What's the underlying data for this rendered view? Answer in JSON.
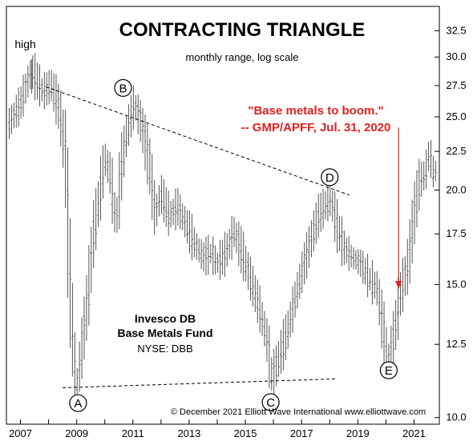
{
  "chart_data": {
    "type": "range-bar",
    "title": "CONTRACTING TRIANGLE",
    "subtitle": "monthly range, log scale",
    "y_scale": "log",
    "ylim": [
      9.8,
      35
    ],
    "xlim": [
      2006.5,
      2021.9
    ],
    "y_ticks": [
      {
        "value": 10.0,
        "label": "10.0"
      },
      {
        "value": 12.5,
        "label": "12.5"
      },
      {
        "value": 15.0,
        "label": "15.0"
      },
      {
        "value": 17.5,
        "label": "17.5"
      },
      {
        "value": 20.0,
        "label": "20.0"
      },
      {
        "value": 22.5,
        "label": "22.5"
      },
      {
        "value": 25.0,
        "label": "25.0"
      },
      {
        "value": 27.5,
        "label": "27.5"
      },
      {
        "value": 30.0,
        "label": "30.0"
      },
      {
        "value": 32.5,
        "label": "32.5"
      }
    ],
    "x_ticks": [
      {
        "value": 2007,
        "label": "2007"
      },
      {
        "value": 2009,
        "label": "2009"
      },
      {
        "value": 2011,
        "label": "2011"
      },
      {
        "value": 2013,
        "label": "2013"
      },
      {
        "value": 2015,
        "label": "2015"
      },
      {
        "value": 2017,
        "label": "2017"
      },
      {
        "value": 2019,
        "label": "2019"
      },
      {
        "value": 2021,
        "label": "2021"
      }
    ],
    "price_path": [
      [
        2006.6,
        24.5
      ],
      [
        2007.0,
        26.0
      ],
      [
        2007.4,
        28.8
      ],
      [
        2007.8,
        27.0
      ],
      [
        2008.1,
        27.5
      ],
      [
        2008.4,
        25.5
      ],
      [
        2008.6,
        22.0
      ],
      [
        2008.75,
        15.5
      ],
      [
        2008.9,
        12.0
      ],
      [
        2009.0,
        10.9
      ],
      [
        2009.2,
        12.5
      ],
      [
        2009.4,
        14.5
      ],
      [
        2009.6,
        17.5
      ],
      [
        2009.8,
        19.5
      ],
      [
        2010.0,
        22.0
      ],
      [
        2010.2,
        21.0
      ],
      [
        2010.4,
        18.0
      ],
      [
        2010.6,
        21.5
      ],
      [
        2010.8,
        24.0
      ],
      [
        2011.05,
        26.0
      ],
      [
        2011.3,
        24.5
      ],
      [
        2011.6,
        21.5
      ],
      [
        2011.8,
        18.5
      ],
      [
        2012.0,
        19.8
      ],
      [
        2012.3,
        18.5
      ],
      [
        2012.6,
        19.0
      ],
      [
        2012.9,
        18.0
      ],
      [
        2013.2,
        17.0
      ],
      [
        2013.5,
        16.3
      ],
      [
        2013.8,
        16.5
      ],
      [
        2014.0,
        16.0
      ],
      [
        2014.3,
        16.5
      ],
      [
        2014.6,
        17.6
      ],
      [
        2014.9,
        16.5
      ],
      [
        2015.2,
        15.2
      ],
      [
        2015.5,
        14.0
      ],
      [
        2015.75,
        12.8
      ],
      [
        2015.95,
        11.3
      ],
      [
        2016.2,
        12.0
      ],
      [
        2016.5,
        13.0
      ],
      [
        2016.8,
        14.5
      ],
      [
        2017.1,
        16.0
      ],
      [
        2017.4,
        17.5
      ],
      [
        2017.6,
        18.5
      ],
      [
        2017.9,
        19.2
      ],
      [
        2018.05,
        19.4
      ],
      [
        2018.25,
        18.0
      ],
      [
        2018.5,
        16.8
      ],
      [
        2018.8,
        16.3
      ],
      [
        2019.1,
        16.0
      ],
      [
        2019.4,
        15.3
      ],
      [
        2019.7,
        14.8
      ],
      [
        2019.85,
        13.5
      ],
      [
        2020.05,
        12.0
      ],
      [
        2020.25,
        12.5
      ],
      [
        2020.5,
        14.5
      ],
      [
        2020.8,
        16.0
      ],
      [
        2021.0,
        18.5
      ],
      [
        2021.2,
        20.5
      ],
      [
        2021.4,
        21.0
      ],
      [
        2021.55,
        22.5
      ],
      [
        2021.7,
        21.0
      ],
      [
        2021.8,
        21.3
      ]
    ],
    "high_point": {
      "x": 2007.4,
      "y": 29.8,
      "label": "high"
    },
    "wave_labels": [
      {
        "label": "A",
        "x": 2009.05,
        "y": 10.45
      },
      {
        "label": "B",
        "x": 2010.65,
        "y": 27.3
      },
      {
        "label": "C",
        "x": 2015.9,
        "y": 10.48
      },
      {
        "label": "D",
        "x": 2018.0,
        "y": 20.8
      },
      {
        "label": "E",
        "x": 2020.1,
        "y": 11.55
      }
    ],
    "trendlines": [
      {
        "from": [
          2007.9,
          27.4
        ],
        "to": [
          2018.7,
          19.7
        ],
        "style": "dashed"
      },
      {
        "from": [
          2008.5,
          10.95
        ],
        "to": [
          2018.2,
          11.25
        ],
        "style": "dashed"
      }
    ],
    "annotation": {
      "lines": [
        "\"Base metals to boom.\"",
        "-- GMP/APFF, Jul. 31, 2020"
      ],
      "color": "#e02020",
      "arrow_from": [
        2020.45,
        24.2
      ],
      "arrow_to": [
        2020.45,
        14.8
      ]
    },
    "fund_label": {
      "line1": "Invesco DB",
      "line2": "Base Metals Fund",
      "line3": "NYSE: DBB"
    },
    "copyright": "© December 2021 Elliott Wave International  www.elliottwave.com"
  }
}
